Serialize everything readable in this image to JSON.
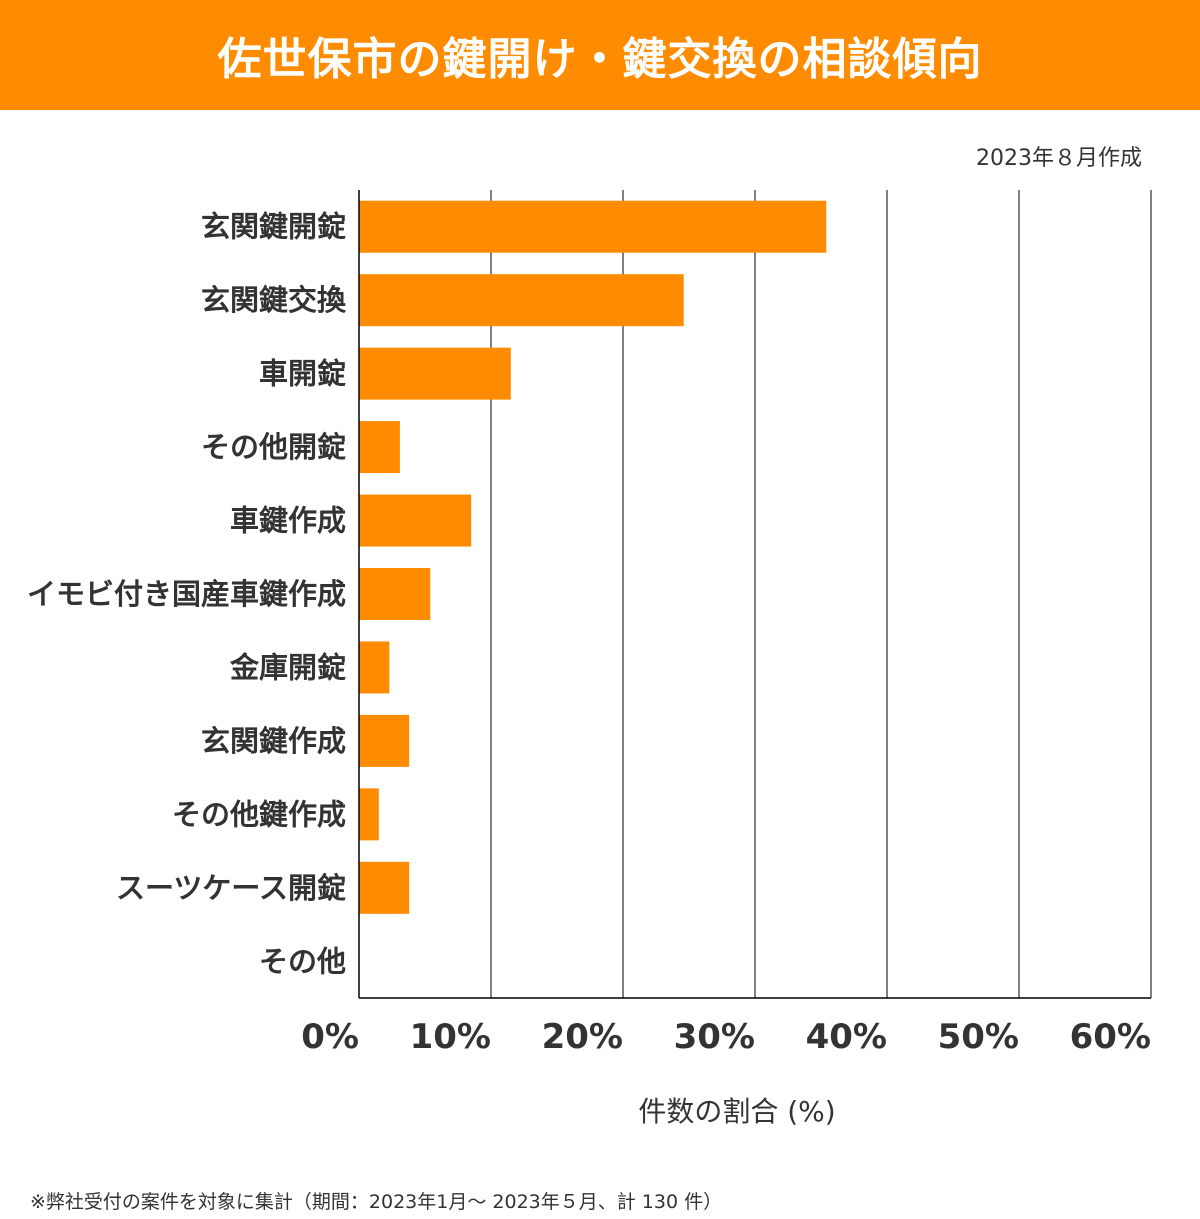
{
  "title": "佐世保市の鍵開け・鍵交換の相談傾向",
  "date": "2023年８月作成",
  "footnote": "※弊社受付の案件を対象に集計（期間：2023年1月～ 2023年５月、計 130 件）",
  "colors": {
    "bar": "#ff8c00",
    "title_bg": "#ff8c00",
    "grid": "#000000"
  },
  "chart_data": {
    "type": "bar",
    "orientation": "horizontal",
    "categories": [
      "玄関鍵開錠",
      "玄関鍵交換",
      "車開錠",
      "その他開錠",
      "車鍵作成",
      "イモビ付き国産車鍵作成",
      "金庫開錠",
      "玄関鍵作成",
      "その他鍵作成",
      "スーツケース開錠",
      "その他"
    ],
    "values": [
      35.4,
      24.6,
      11.5,
      3.1,
      8.5,
      5.4,
      2.3,
      3.8,
      1.5,
      3.8,
      0
    ],
    "xlabel": "件数の割合 (%)",
    "ylabel": "",
    "xlim": [
      0,
      60
    ],
    "xticks": [
      "0%",
      "10%",
      "20%",
      "30%",
      "40%",
      "50%",
      "60%"
    ],
    "grid": "vertical"
  }
}
